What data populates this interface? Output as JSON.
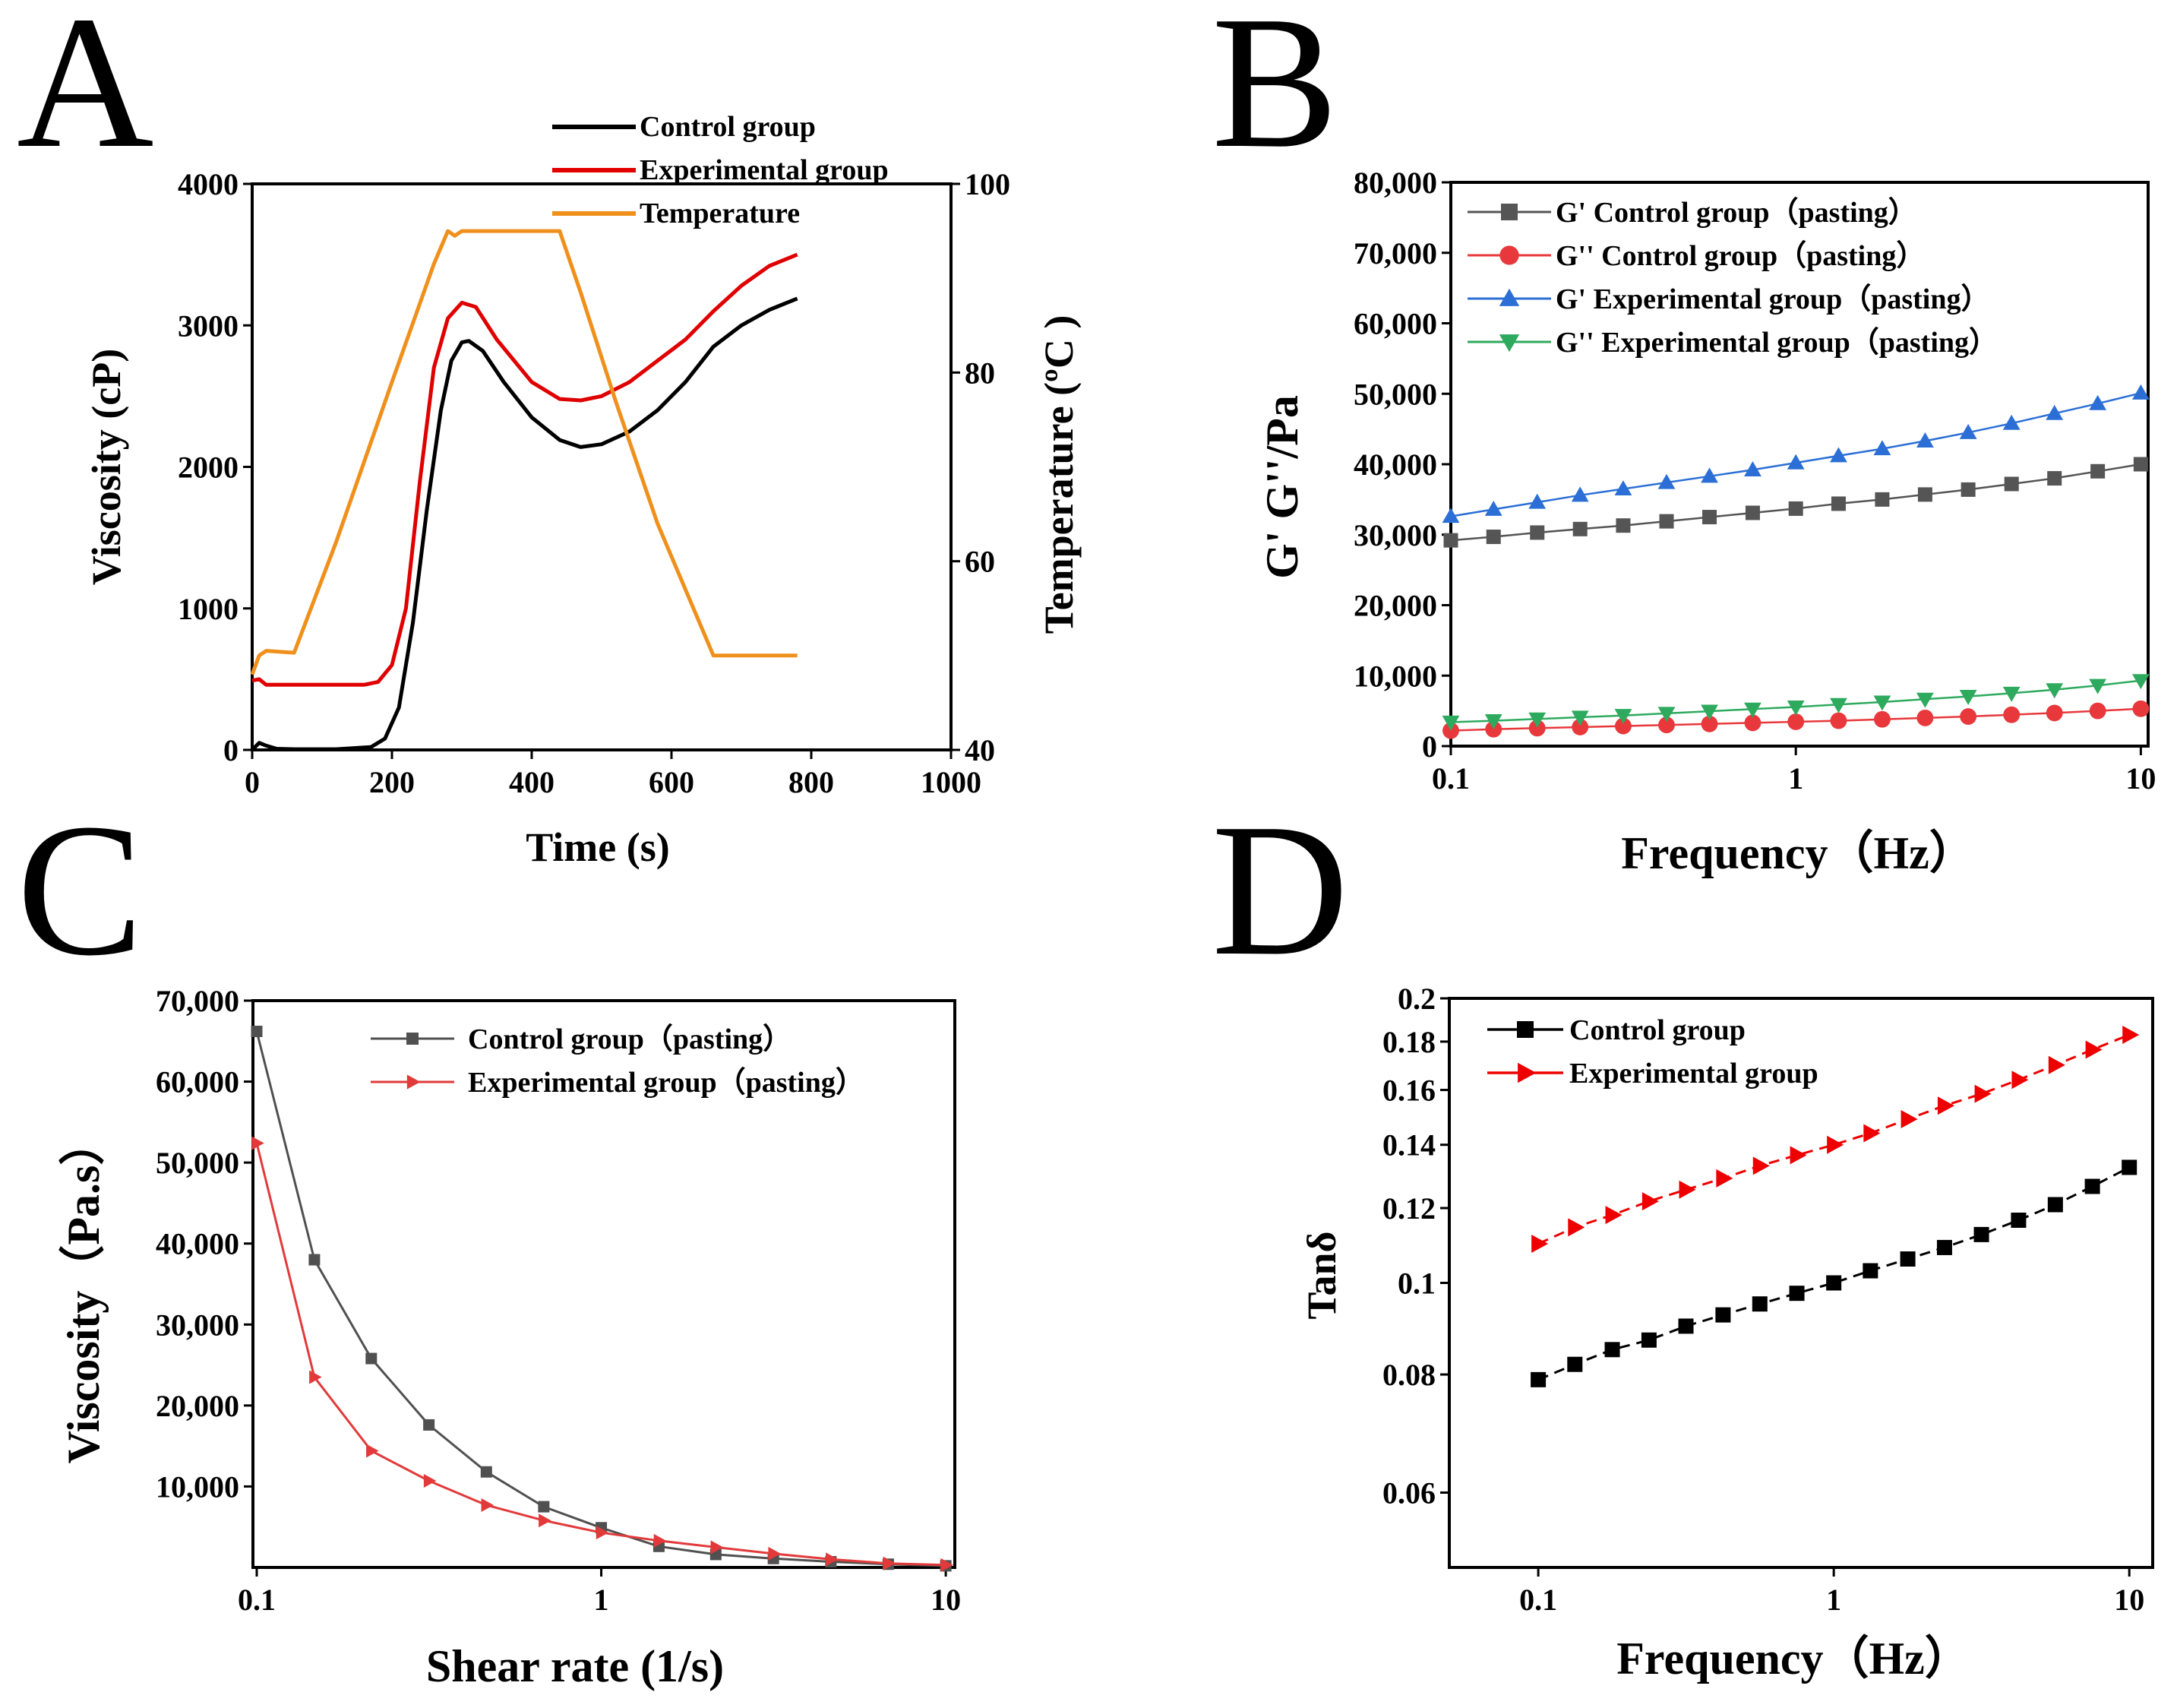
{
  "figure": {
    "panel_letters": [
      "A",
      "B",
      "C",
      "D"
    ]
  },
  "chart_data": [
    {
      "panel": "A",
      "type": "line",
      "title": "",
      "xlabel": "Time (s)",
      "ylabel": "Viscosity (cP)",
      "y2label": "Temperature (ºC )",
      "xlim": [
        0,
        1000
      ],
      "ylim": [
        0,
        4000
      ],
      "y2lim": [
        40,
        100
      ],
      "xticks": [
        "0",
        "200",
        "400",
        "600",
        "800",
        "1000"
      ],
      "yticks": [
        "0",
        "1000",
        "2000",
        "3000",
        "4000"
      ],
      "y2ticks": [
        "40",
        "60",
        "80",
        "100"
      ],
      "legend_position": "top-right",
      "series": [
        {
          "name": "Control group",
          "color": "#000000",
          "axis": "left",
          "x": [
            0,
            10,
            20,
            35,
            60,
            120,
            170,
            190,
            210,
            230,
            250,
            270,
            285,
            300,
            310,
            330,
            360,
            400,
            440,
            470,
            500,
            540,
            580,
            620,
            660,
            700,
            740,
            780
          ],
          "y": [
            0,
            50,
            30,
            8,
            5,
            5,
            20,
            80,
            300,
            900,
            1700,
            2400,
            2750,
            2880,
            2890,
            2820,
            2600,
            2350,
            2190,
            2140,
            2160,
            2250,
            2400,
            2600,
            2850,
            3000,
            3110,
            3190
          ]
        },
        {
          "name": "Experimental group",
          "color": "#e00000",
          "axis": "left",
          "x": [
            0,
            10,
            20,
            40,
            100,
            160,
            180,
            200,
            220,
            240,
            260,
            280,
            300,
            320,
            350,
            400,
            440,
            470,
            500,
            540,
            580,
            620,
            660,
            700,
            740,
            780
          ],
          "y": [
            490,
            500,
            460,
            460,
            460,
            460,
            480,
            600,
            1000,
            1900,
            2700,
            3050,
            3160,
            3130,
            2900,
            2600,
            2480,
            2470,
            2500,
            2600,
            2750,
            2900,
            3100,
            3280,
            3420,
            3500
          ]
        },
        {
          "name": "Temperature",
          "color": "#f0901c",
          "axis": "right",
          "x": [
            0,
            10,
            20,
            60,
            120,
            200,
            260,
            280,
            290,
            300,
            320,
            440,
            470,
            520,
            580,
            660,
            780
          ],
          "y": [
            48,
            50,
            50.5,
            50.3,
            62,
            79,
            91.5,
            95,
            94.5,
            95,
            95,
            95,
            88.5,
            77,
            64,
            50,
            50
          ]
        }
      ]
    },
    {
      "panel": "B",
      "type": "line",
      "title": "",
      "xlabel": "Frequency（Hz）",
      "ylabel": "G' G''/Pa",
      "xscale": "log",
      "xlim": [
        0.1,
        10.5
      ],
      "ylim": [
        0,
        80000
      ],
      "xticks": [
        "0.1",
        "1",
        "10"
      ],
      "yticks": [
        "0",
        "10,000",
        "20,000",
        "30,000",
        "40,000",
        "50,000",
        "60,000",
        "70,000",
        "80,000"
      ],
      "legend_position": "top-left",
      "x": [
        0.1,
        0.133,
        0.178,
        0.237,
        0.316,
        0.422,
        0.562,
        0.75,
        1.0,
        1.33,
        1.78,
        2.37,
        3.16,
        4.22,
        5.62,
        7.5,
        10.0
      ],
      "series": [
        {
          "name": "G'  Control group（pasting）",
          "color": "#555555",
          "marker": "square",
          "values": [
            29200,
            29700,
            30300,
            30800,
            31300,
            31900,
            32500,
            33100,
            33700,
            34400,
            35000,
            35700,
            36400,
            37200,
            38000,
            39000,
            40000
          ]
        },
        {
          "name": "G'' Control group（pasting）",
          "color": "#e8383b",
          "marker": "circle",
          "values": [
            2200,
            2400,
            2550,
            2700,
            2850,
            3000,
            3150,
            3300,
            3450,
            3600,
            3800,
            4000,
            4200,
            4450,
            4700,
            5000,
            5300
          ]
        },
        {
          "name": "G'  Experimental group（pasting）",
          "color": "#2b6fd6",
          "marker": "triangle-up",
          "values": [
            32600,
            33600,
            34600,
            35600,
            36500,
            37400,
            38300,
            39200,
            40200,
            41200,
            42200,
            43300,
            44500,
            45800,
            47200,
            48600,
            50100
          ]
        },
        {
          "name": "G'' Experimental group（pasting）",
          "color": "#2eaa5e",
          "marker": "triangle-down",
          "values": [
            3400,
            3600,
            3850,
            4100,
            4350,
            4650,
            4950,
            5250,
            5550,
            5900,
            6250,
            6650,
            7050,
            7500,
            8000,
            8600,
            9300
          ]
        }
      ]
    },
    {
      "panel": "C",
      "type": "line",
      "title": "",
      "xlabel": "Shear rate (1/s)",
      "ylabel": "Viscosity（Pa.s）",
      "xscale": "log",
      "xlim": [
        0.1,
        10.2
      ],
      "ylim": [
        0,
        70000
      ],
      "xticks": [
        "0.1",
        "1",
        "10"
      ],
      "yticks": [
        "10,000",
        "20,000",
        "30,000",
        "40,000",
        "50,000",
        "60,000",
        "70,000"
      ],
      "legend_position": "top-right",
      "x": [
        0.1,
        0.147,
        0.215,
        0.316,
        0.464,
        0.681,
        1.0,
        1.47,
        2.15,
        3.16,
        4.64,
        6.81,
        10.0
      ],
      "series": [
        {
          "name": "Control group（pasting）",
          "color": "#505050",
          "marker": "square",
          "values": [
            66200,
            38000,
            25800,
            17600,
            11800,
            7500,
            4900,
            2600,
            1600,
            1100,
            700,
            400,
            200
          ]
        },
        {
          "name": "Experimental group（pasting）",
          "color": "#e23a3a",
          "marker": "triangle-right",
          "values": [
            52400,
            23500,
            14400,
            10700,
            7700,
            5800,
            4300,
            3300,
            2500,
            1700,
            1000,
            500,
            300
          ]
        }
      ]
    },
    {
      "panel": "D",
      "type": "line",
      "title": "",
      "xlabel": "Frequency（Hz）",
      "ylabel": "Tanδ",
      "xscale": "log",
      "yscale": "log",
      "xlim": [
        0.05,
        12
      ],
      "ylim": [
        0.05,
        0.2
      ],
      "xticks": [
        "0.1",
        "1",
        "10"
      ],
      "yticks": [
        "0.06",
        "0.08",
        "0.1",
        "0.12",
        "0.14",
        "0.16",
        "0.18",
        "0.2"
      ],
      "legend_position": "top-left",
      "x": [
        0.1,
        0.133,
        0.178,
        0.237,
        0.316,
        0.422,
        0.562,
        0.75,
        1.0,
        1.33,
        1.78,
        2.37,
        3.16,
        4.22,
        5.62,
        7.5,
        10.0
      ],
      "series": [
        {
          "name": "Control group",
          "color": "#000000",
          "marker": "square",
          "values": [
            0.079,
            0.082,
            0.085,
            0.087,
            0.09,
            0.0925,
            0.095,
            0.0975,
            0.1,
            0.103,
            0.106,
            0.109,
            0.1125,
            0.1165,
            0.121,
            0.1265,
            0.1325
          ]
        },
        {
          "name": "Experimental group",
          "color": "#ee0000",
          "marker": "triangle-right",
          "values": [
            0.11,
            0.1145,
            0.118,
            0.122,
            0.1255,
            0.129,
            0.133,
            0.1365,
            0.14,
            0.144,
            0.149,
            0.154,
            0.1585,
            0.164,
            0.17,
            0.1765,
            0.183
          ]
        }
      ]
    }
  ]
}
